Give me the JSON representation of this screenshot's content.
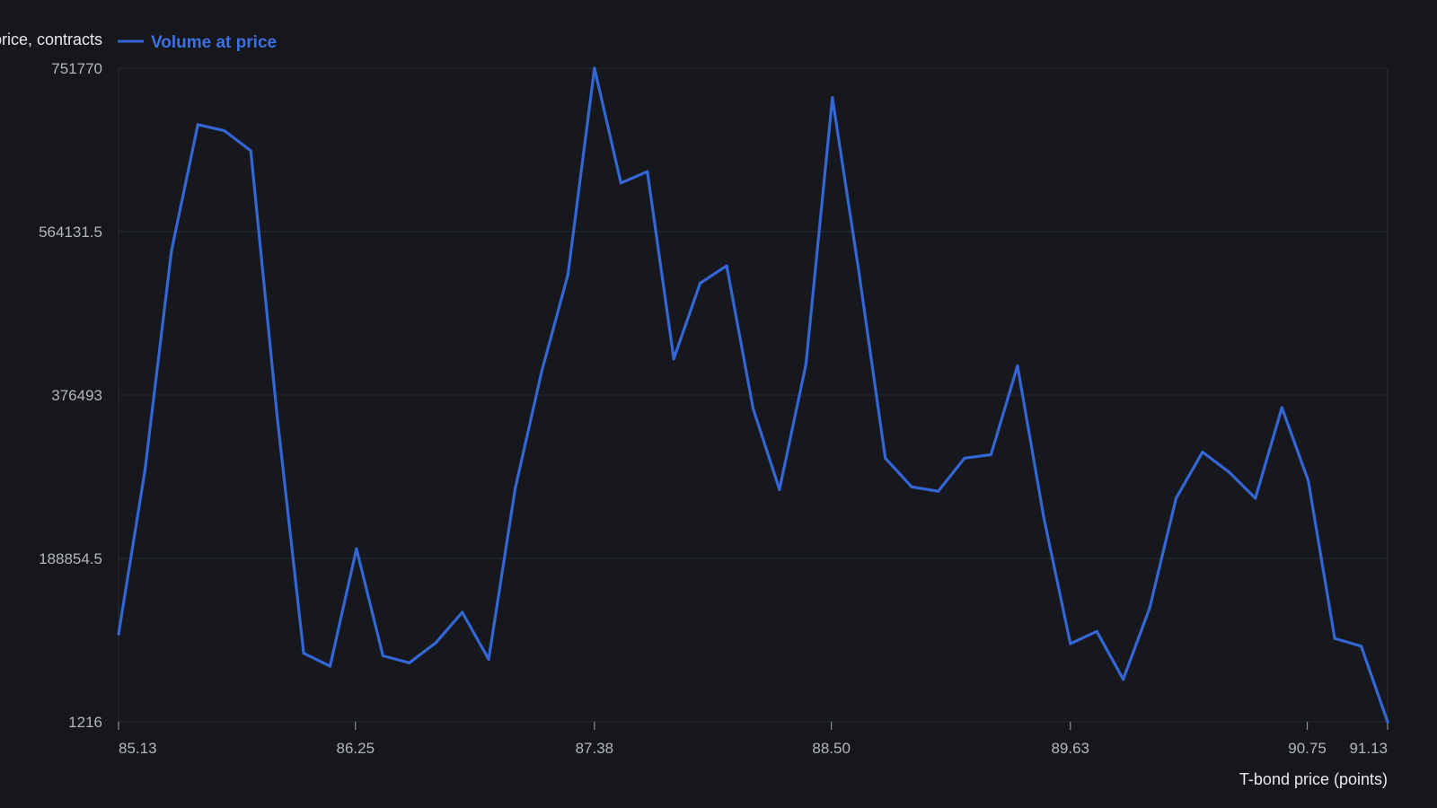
{
  "chart_data": {
    "type": "line",
    "xlabel": "T-bond price (points)",
    "ylabel": "Volume at price, contracts",
    "legend": {
      "placement": "top-left",
      "entries": [
        "Volume at price"
      ]
    },
    "grid": true,
    "x_ticks": [
      "85.13",
      "86.25",
      "87.38",
      "88.50",
      "89.63",
      "90.75",
      "91.13"
    ],
    "y_ticks": [
      "751770",
      "564131.5",
      "376493",
      "188854.5",
      "1216"
    ],
    "xlim": [
      85.13,
      91.13
    ],
    "ylim": [
      1216,
      751770
    ],
    "colors": {
      "series": "#3466d6",
      "background": "#15171c",
      "grid": "#262a31"
    },
    "series": [
      {
        "name": "Volume at price",
        "x": [
          85.13,
          85.255,
          85.38,
          85.505,
          85.63,
          85.755,
          85.88,
          86.005,
          86.13,
          86.255,
          86.38,
          86.505,
          86.63,
          86.755,
          86.88,
          87.005,
          87.13,
          87.255,
          87.38,
          87.505,
          87.63,
          87.755,
          87.88,
          88.005,
          88.13,
          88.255,
          88.38,
          88.505,
          88.63,
          88.755,
          88.88,
          89.005,
          89.13,
          89.255,
          89.38,
          89.505,
          89.63,
          89.755,
          89.88,
          90.005,
          90.13,
          90.255,
          90.38,
          90.505,
          90.63,
          90.755,
          90.88,
          91.005,
          91.13
        ],
        "values": [
          102000,
          290000,
          542000,
          687000,
          680000,
          657000,
          352000,
          80000,
          65000,
          200000,
          77000,
          69000,
          92000,
          127000,
          73000,
          269000,
          403000,
          515000,
          751770,
          620000,
          633000,
          418000,
          505000,
          525000,
          361000,
          268000,
          412000,
          718000,
          518000,
          304000,
          271000,
          266000,
          304000,
          308000,
          410000,
          235000,
          91000,
          105000,
          50000,
          132000,
          258000,
          311000,
          288000,
          258000,
          362000,
          278000,
          97000,
          88000,
          1216
        ]
      }
    ]
  }
}
